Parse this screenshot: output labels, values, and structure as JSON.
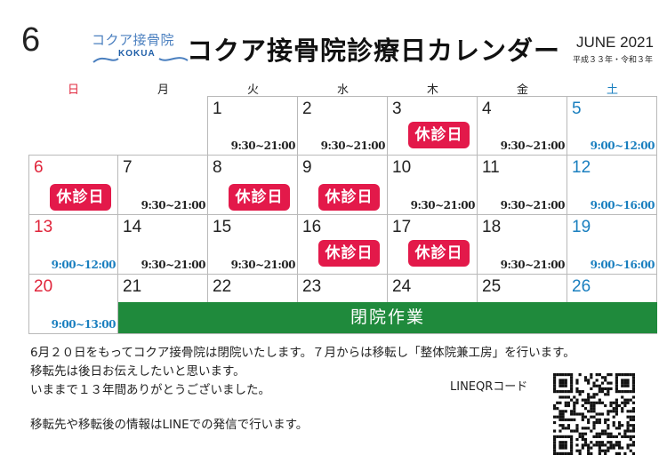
{
  "header": {
    "month": "6",
    "logo_jp": "コクア接骨院",
    "logo_en": "KOKUA",
    "title": "コクア接骨院診療日カレンダー",
    "month_year": "JUNE 2021",
    "era": "平成３３年・令和３年"
  },
  "weekdays": [
    "日",
    "月",
    "火",
    "水",
    "木",
    "金",
    "土"
  ],
  "closed_label": "休診日",
  "weeks": [
    [
      {
        "day": ""
      },
      {
        "day": ""
      },
      {
        "day": "1",
        "hours": "9:30~21:00"
      },
      {
        "day": "2",
        "hours": "9:30~21:00"
      },
      {
        "day": "3",
        "closed": true
      },
      {
        "day": "4",
        "hours": "9:30~21:00"
      },
      {
        "day": "5",
        "hours": "9:00~12:00"
      }
    ],
    [
      {
        "day": "6",
        "closed": true
      },
      {
        "day": "7",
        "hours": "9:30~21:00"
      },
      {
        "day": "8",
        "closed": true
      },
      {
        "day": "9",
        "closed": true
      },
      {
        "day": "10",
        "hours": "9:30~21:00"
      },
      {
        "day": "11",
        "hours": "9:30~21:00"
      },
      {
        "day": "12",
        "hours": "9:00~16:00"
      }
    ],
    [
      {
        "day": "13",
        "hours": "9:00~12:00"
      },
      {
        "day": "14",
        "hours": "9:30~21:00"
      },
      {
        "day": "15",
        "hours": "9:30~21:00"
      },
      {
        "day": "16",
        "closed": true
      },
      {
        "day": "17",
        "closed": true
      },
      {
        "day": "18",
        "hours": "9:30~21:00"
      },
      {
        "day": "19",
        "hours": "9:00~16:00"
      }
    ],
    [
      {
        "day": "20",
        "hours": "9:00~13:00"
      },
      {
        "day": "21"
      },
      {
        "day": "22"
      },
      {
        "day": "23"
      },
      {
        "day": "24"
      },
      {
        "day": "25"
      },
      {
        "day": "26"
      }
    ]
  ],
  "banner": "閉院作業",
  "notes": {
    "line1": "6月２０日をもってコクア接骨院は閉院いたします。７月からは移転し「整体院兼工房」を行います。",
    "line2": "移転先は後日お伝えしたいと思います。",
    "line3": "いままで１３年間ありがとうございました。",
    "line4": "移転先や移転後の情報はLINEでの発信で行います。"
  },
  "qr_label": "LINEQRコード",
  "colors": {
    "sunday": "#e0243a",
    "saturday": "#1a7fbf",
    "closed": "#e3194a",
    "banner": "#1f8a3c"
  }
}
